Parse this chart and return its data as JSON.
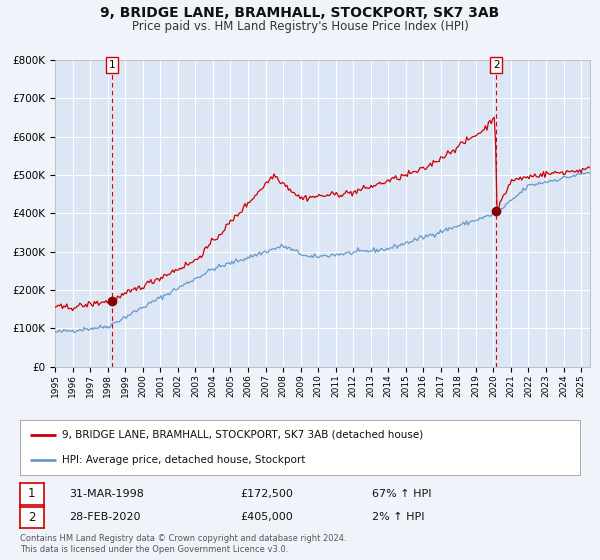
{
  "title": "9, BRIDGE LANE, BRAMHALL, STOCKPORT, SK7 3AB",
  "subtitle": "Price paid vs. HM Land Registry's House Price Index (HPI)",
  "ylim": [
    0,
    800000
  ],
  "yticks": [
    0,
    100000,
    200000,
    300000,
    400000,
    500000,
    600000,
    700000,
    800000
  ],
  "ytick_labels": [
    "£0",
    "£100K",
    "£200K",
    "£300K",
    "£400K",
    "£500K",
    "£600K",
    "£700K",
    "£800K"
  ],
  "xlim_start": 1995.0,
  "xlim_end": 2025.5,
  "xticks": [
    1995,
    1996,
    1997,
    1998,
    1999,
    2000,
    2001,
    2002,
    2003,
    2004,
    2005,
    2006,
    2007,
    2008,
    2009,
    2010,
    2011,
    2012,
    2013,
    2014,
    2015,
    2016,
    2017,
    2018,
    2019,
    2020,
    2021,
    2022,
    2023,
    2024,
    2025
  ],
  "background_color": "#f0f4fa",
  "plot_bg_color": "#dce6f5",
  "grid_color": "#ffffff",
  "red_line_color": "#cc0000",
  "blue_line_color": "#6699cc",
  "dashed_vline_color": "#cc0000",
  "sale1_x": 1998.25,
  "sale1_y": 172500,
  "sale2_x": 2020.17,
  "sale2_y": 405000,
  "legend_line1": "9, BRIDGE LANE, BRAMHALL, STOCKPORT, SK7 3AB (detached house)",
  "legend_line2": "HPI: Average price, detached house, Stockport",
  "table_row1_date": "31-MAR-1998",
  "table_row1_price": "£172,500",
  "table_row1_hpi": "67% ↑ HPI",
  "table_row2_date": "28-FEB-2020",
  "table_row2_price": "£405,000",
  "table_row2_hpi": "2% ↑ HPI",
  "footnote1": "Contains HM Land Registry data © Crown copyright and database right 2024.",
  "footnote2": "This data is licensed under the Open Government Licence v3.0."
}
